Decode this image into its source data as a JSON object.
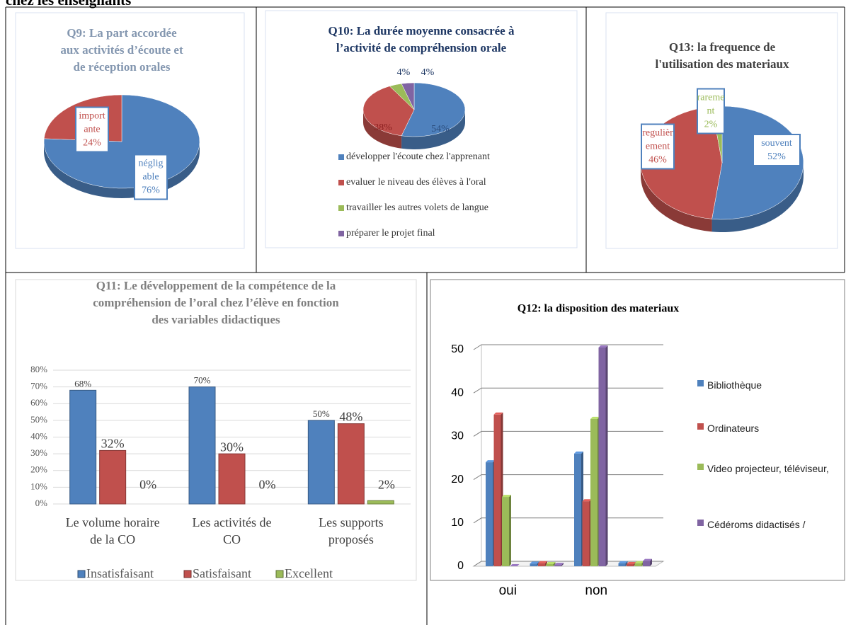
{
  "header": {
    "text": "chez les enseignants"
  },
  "chart_data": [
    {
      "type": "pie",
      "title": [
        "Q9: La part accordée",
        "aux activités d’écoute et",
        "de réception orales"
      ],
      "categories": [
        [
          "néglig",
          "able"
        ],
        [
          "import",
          "ante"
        ]
      ],
      "values": [
        76,
        24
      ],
      "value_labels": [
        "76%",
        "24%"
      ],
      "colors": [
        "#4f81bd",
        "#c0504d"
      ]
    },
    {
      "type": "pie",
      "title": [
        "Q10: La durée moyenne consacrée à",
        "l’activité de compréhension orale"
      ],
      "categories": [
        "développer l'écoute chez l'apprenant",
        "evaluer le niveau des élèves à l'oral",
        "travailler les autres volets de langue",
        "préparer le projet final"
      ],
      "values": [
        54,
        38,
        4,
        4
      ],
      "value_labels": [
        "54%",
        "38%",
        "4%",
        "4%"
      ],
      "colors": [
        "#4f81bd",
        "#c0504d",
        "#9bbb59",
        "#8064a2"
      ]
    },
    {
      "type": "pie",
      "title": [
        "Q13: la frequence de",
        "l'utilisation des materiaux"
      ],
      "categories": [
        [
          "souvent"
        ],
        [
          "regulièr",
          "ement"
        ],
        [
          "rareme",
          "nt"
        ]
      ],
      "values": [
        52,
        46,
        2
      ],
      "value_labels": [
        "52%",
        "46%",
        "2%"
      ],
      "colors": [
        "#4f81bd",
        "#c0504d",
        "#9bbb59"
      ]
    },
    {
      "type": "bar",
      "title": [
        "Q11: Le développement de la compétence de la",
        "compréhension de l’oral chez l’élève en fonction",
        "des variables didactiques"
      ],
      "categories": [
        [
          "Le volume horaire",
          "de la CO"
        ],
        [
          "Les activités de",
          "CO"
        ],
        [
          "Les supports",
          "proposés"
        ]
      ],
      "series": [
        {
          "name": "Insatisfaisant",
          "color": "#4f81bd",
          "values": [
            68,
            70,
            50
          ],
          "value_labels": [
            "68%",
            "70%",
            "50%"
          ]
        },
        {
          "name": "Satisfaisant",
          "color": "#c0504d",
          "values": [
            32,
            30,
            48
          ],
          "value_labels": [
            "32%",
            "30%",
            "48%"
          ]
        },
        {
          "name": "Excellent",
          "color": "#9bbb59",
          "values": [
            0,
            0,
            2
          ],
          "value_labels": [
            "0%",
            "0%",
            "2%"
          ]
        }
      ],
      "ylim": [
        0,
        80
      ],
      "yticks": [
        {
          "value": 0,
          "label": "0%"
        },
        {
          "value": 10,
          "label": "10%"
        },
        {
          "value": 20,
          "label": "20%"
        },
        {
          "value": 30,
          "label": "30%"
        },
        {
          "value": 40,
          "label": "40%"
        },
        {
          "value": 50,
          "label": "50%"
        },
        {
          "value": 60,
          "label": "60%"
        },
        {
          "value": 70,
          "label": "70%"
        },
        {
          "value": 80,
          "label": "80%"
        }
      ],
      "grid": true
    },
    {
      "type": "bar3d",
      "title": "Q12: la disposition des materiaux",
      "categories": [
        "oui",
        null,
        "non",
        null
      ],
      "series": [
        {
          "name": "Bibliothèque",
          "color": "#4f81bd",
          "values": [
            24,
            0.6,
            26,
            0.7
          ]
        },
        {
          "name": "Ordinateurs",
          "color": "#c0504d",
          "values": [
            35,
            0.7,
            15,
            0.5
          ]
        },
        {
          "name": "Video projecteur, téléviseur,",
          "color": "#9bbb59",
          "values": [
            16,
            0.5,
            34,
            0.7
          ]
        },
        {
          "name": "Cédéroms didactisés /",
          "color": "#8064a2",
          "values": [
            0,
            0.3,
            50.5,
            1.2
          ]
        }
      ],
      "ylim": [
        0,
        50
      ],
      "yticks": [
        0,
        10,
        20,
        30,
        40,
        50
      ],
      "grid": true
    }
  ]
}
